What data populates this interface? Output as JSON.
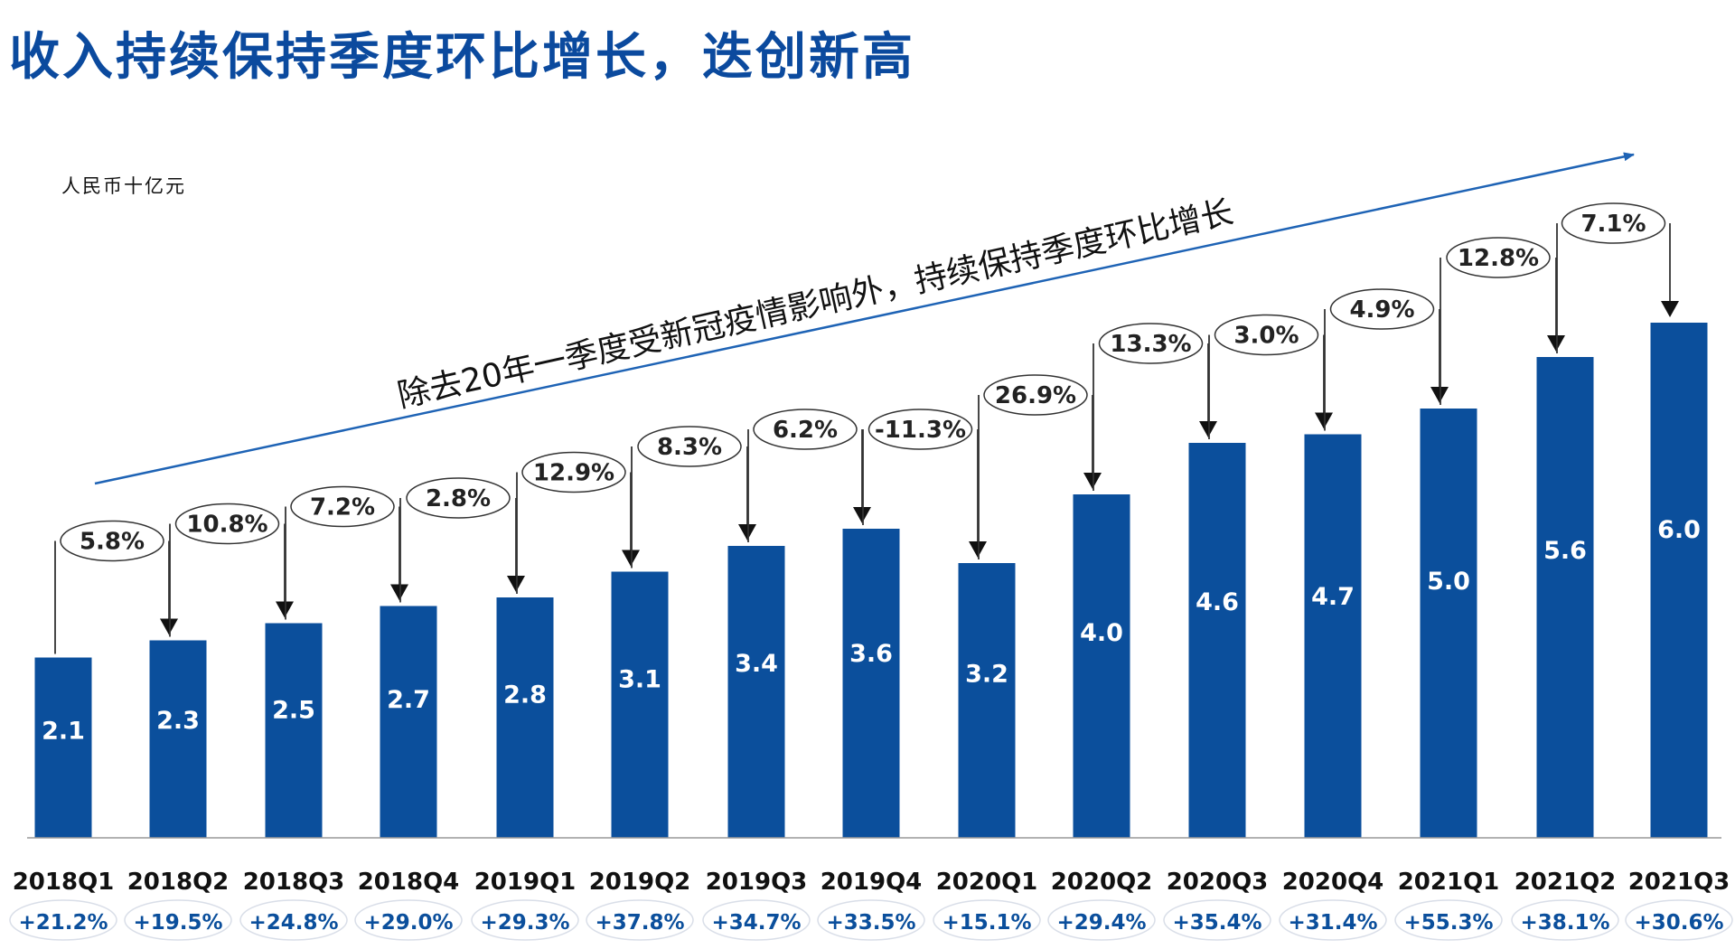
{
  "title": "收入持续保持季度环比增长，迭创新高",
  "unit": "人民币十亿元",
  "chart_data": {
    "type": "bar",
    "categories": [
      "2018Q1",
      "2018Q2",
      "2018Q3",
      "2018Q4",
      "2019Q1",
      "2019Q2",
      "2019Q3",
      "2019Q4",
      "2020Q1",
      "2020Q2",
      "2020Q3",
      "2020Q4",
      "2021Q1",
      "2021Q2",
      "2021Q3"
    ],
    "values": [
      2.1,
      2.3,
      2.5,
      2.7,
      2.8,
      3.1,
      3.4,
      3.6,
      3.2,
      4.0,
      4.6,
      4.7,
      5.0,
      5.6,
      6.0
    ],
    "qoq_growth": [
      "5.8%",
      "10.8%",
      "7.2%",
      "2.8%",
      "12.9%",
      "8.3%",
      "6.2%",
      "-11.3%",
      "26.9%",
      "13.3%",
      "3.0%",
      "4.9%",
      "12.8%",
      "7.1%"
    ],
    "yoy_growth": [
      "+21.2%",
      "+19.5%",
      "+24.8%",
      "+29.0%",
      "+29.3%",
      "+37.8%",
      "+34.7%",
      "+33.5%",
      "+15.1%",
      "+29.4%",
      "+35.4%",
      "+31.4%",
      "+55.3%",
      "+38.1%",
      "+30.6%"
    ],
    "annotation": "除去20年一季度受新冠疫情影响外，持续保持季度环比增长",
    "ylim": [
      0,
      8
    ],
    "bar_color": "#0b4f9c",
    "arrow_color": "#1e63b5"
  }
}
